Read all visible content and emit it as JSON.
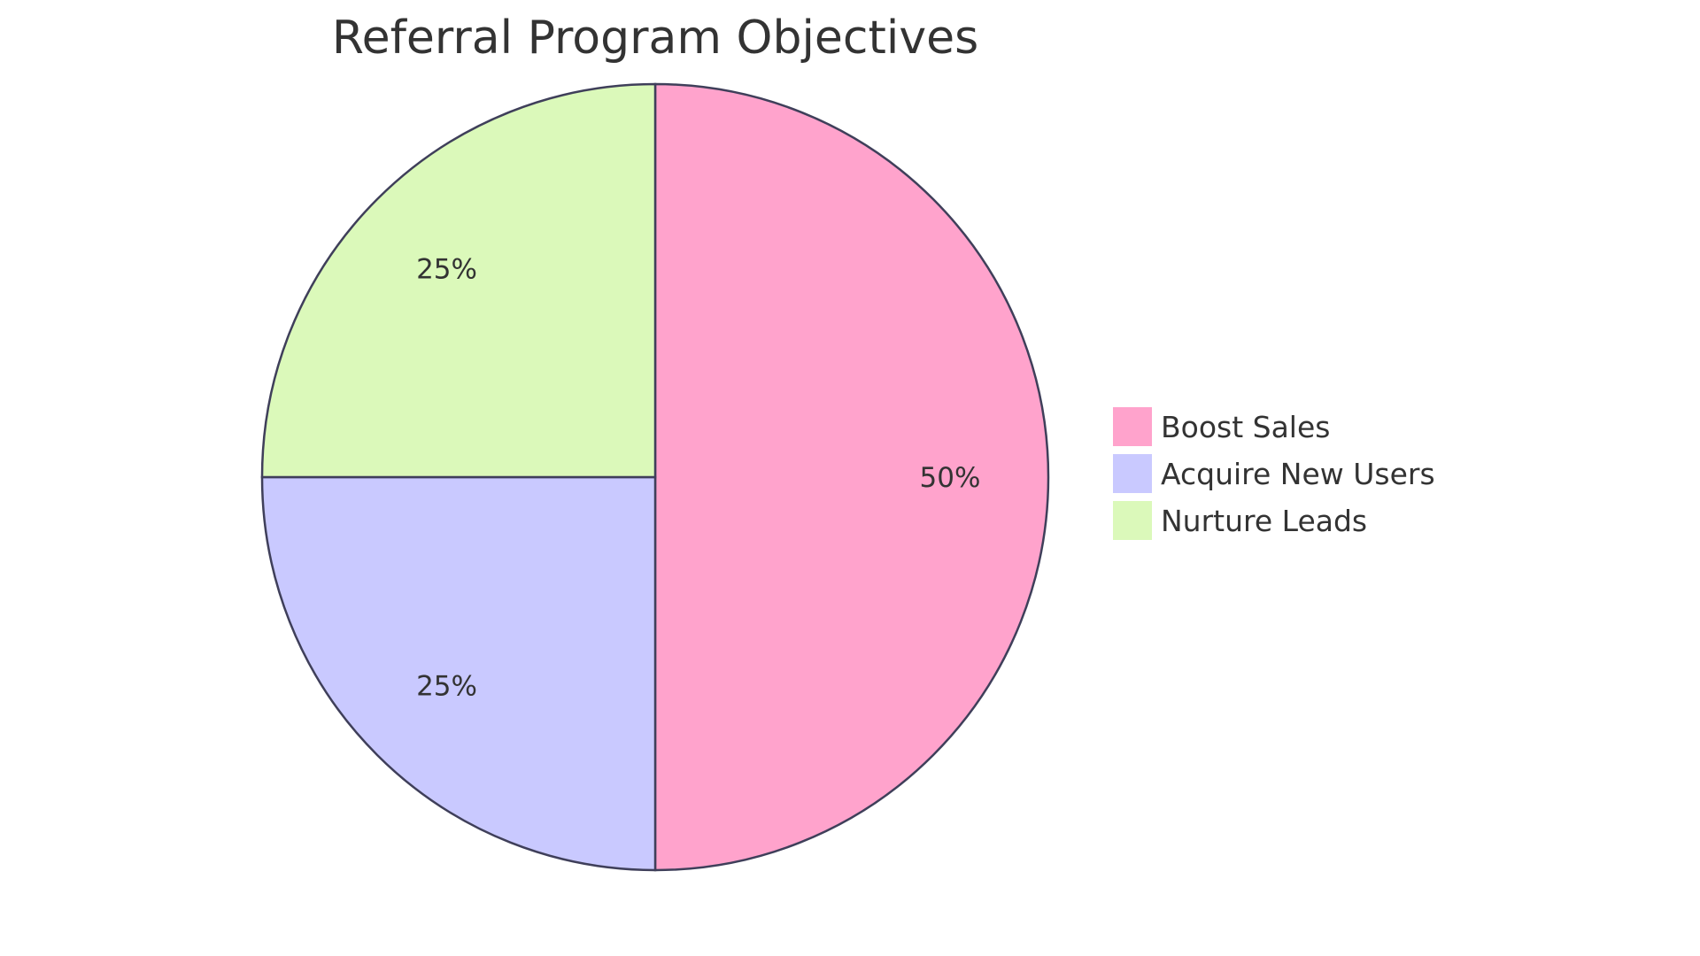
{
  "chart_data": {
    "type": "pie",
    "title": "Referral Program Objectives",
    "categories": [
      "Boost Sales",
      "Acquire New Users",
      "Nurture Leads"
    ],
    "values": [
      50,
      25,
      25
    ],
    "labels": [
      "50%",
      "25%",
      "25%"
    ],
    "colors": [
      "#FFA3CC",
      "#C9C9FF",
      "#DBF9BA"
    ],
    "stroke_color": "#3F3F5A",
    "legend_position": "right"
  }
}
